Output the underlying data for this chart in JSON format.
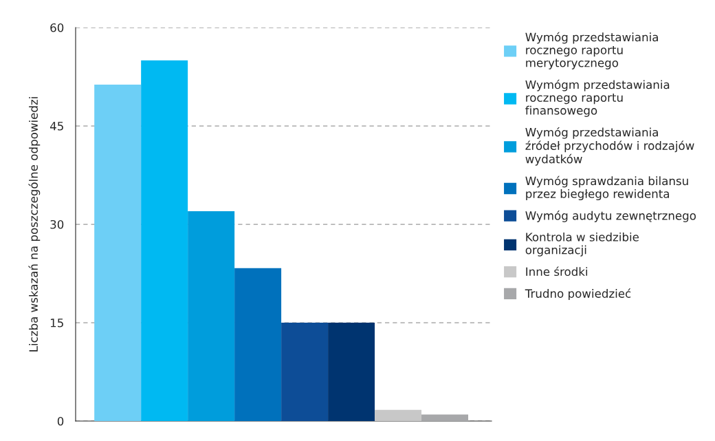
{
  "chart_data": {
    "type": "bar",
    "ylabel": "Liczba wskazań na poszczególne odpowiedzi",
    "categories": [
      null,
      null,
      null,
      null,
      null,
      null,
      null,
      null
    ],
    "series": [
      {
        "name": "Wymóg przedstawiania\nrocznego raportu\nmerytorycznego",
        "color": "#6dcff6",
        "values": [
          51.3,
          null,
          null,
          null,
          null,
          null,
          null,
          null
        ]
      },
      {
        "name": "Wymógm przedstawiania\nrocznego raportu\nfinansowego",
        "color": "#00b9f2",
        "values": [
          null,
          55,
          null,
          null,
          null,
          null,
          null,
          null
        ]
      },
      {
        "name": "Wymóg przedstawiania\nźródeł przychodów i rodzajów\nwydatków",
        "color": "#009ddc",
        "values": [
          null,
          null,
          32,
          null,
          null,
          null,
          null,
          null
        ]
      },
      {
        "name": "Wymóg sprawdzania bilansu\nprzez biegłego rewidenta",
        "color": "#0071bc",
        "values": [
          null,
          null,
          null,
          23.3,
          null,
          null,
          null,
          null
        ]
      },
      {
        "name": "Wymóg audytu zewnętrznego",
        "color": "#0d4d97",
        "values": [
          null,
          null,
          null,
          null,
          15,
          null,
          null,
          null
        ]
      },
      {
        "name": "Kontrola w siedzibie\norganizacji",
        "color": "#003470",
        "values": [
          null,
          null,
          null,
          null,
          null,
          15,
          null,
          null
        ]
      },
      {
        "name": "Inne środki",
        "color": "#c8c8c8",
        "values": [
          null,
          null,
          null,
          null,
          null,
          null,
          1.7,
          null
        ]
      },
      {
        "name": "Trudno powiedzieć",
        "color": "#a7a8aa",
        "values": [
          null,
          null,
          null,
          null,
          null,
          null,
          null,
          1.0
        ]
      }
    ],
    "ylim": [
      0,
      60
    ],
    "yticks": [
      0,
      15,
      30,
      45,
      60
    ],
    "grid": "y",
    "legend": "right"
  }
}
